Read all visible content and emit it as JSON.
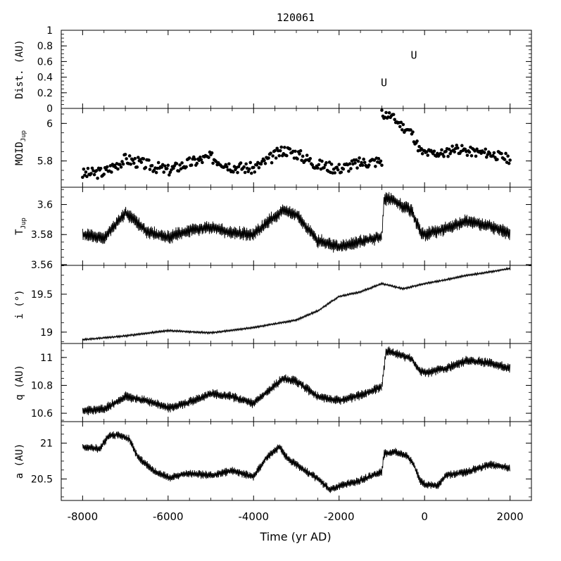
{
  "chart_data": {
    "type": "line",
    "title": "120061",
    "xlabel": "Time (yr AD)",
    "xlim": [
      -8500,
      2500
    ],
    "x_ticks": [
      "-8000",
      "-6000",
      "-4000",
      "-2000",
      "0",
      "2000"
    ],
    "x_tick_values": [
      -8000,
      -6000,
      -4000,
      -2000,
      0,
      2000
    ],
    "panels": [
      {
        "id": "dist",
        "ylabel": "Dist. (AU)",
        "type": "scatter",
        "ylim": [
          0,
          1
        ],
        "ticks": [
          "0",
          "0.2",
          "0.4",
          "0.6",
          "0.8",
          "1"
        ],
        "tick_values": [
          0,
          0.2,
          0.4,
          0.6,
          0.8,
          1
        ],
        "markers": [
          {
            "label": "U",
            "x": -950,
            "y": 0.33
          },
          {
            "label": "U",
            "x": -250,
            "y": 0.68
          }
        ]
      },
      {
        "id": "moid",
        "ylabel": "MOID",
        "ylabel_sub": "Jup",
        "type": "scatter",
        "ylim": [
          5.66,
          6.08
        ],
        "ticks": [
          "5.8",
          "6"
        ],
        "tick_values": [
          5.8,
          6.0
        ],
        "segments": [
          {
            "x0": -8000,
            "x1": -1000,
            "points": [
              [
                -8000,
                5.73
              ],
              [
                -7500,
                5.74
              ],
              [
                -7000,
                5.81
              ],
              [
                -6500,
                5.78
              ],
              [
                -6000,
                5.75
              ],
              [
                -5500,
                5.79
              ],
              [
                -5000,
                5.82
              ],
              [
                -4500,
                5.77
              ],
              [
                -4000,
                5.76
              ],
              [
                -3700,
                5.8
              ],
              [
                -3300,
                5.86
              ],
              [
                -3000,
                5.84
              ],
              [
                -2500,
                5.78
              ],
              [
                -2000,
                5.76
              ],
              [
                -1500,
                5.79
              ],
              [
                -1000,
                5.8
              ]
            ],
            "amp": 0.03,
            "seed": 3
          },
          {
            "x0": -1000,
            "x1": 2000,
            "points": [
              [
                -1000,
                6.05
              ],
              [
                -800,
                6.04
              ],
              [
                -500,
                5.98
              ],
              [
                -300,
                5.95
              ],
              [
                -100,
                5.85
              ],
              [
                0,
                5.84
              ],
              [
                500,
                5.84
              ],
              [
                700,
                5.87
              ],
              [
                1000,
                5.85
              ],
              [
                1500,
                5.84
              ],
              [
                2000,
                5.81
              ]
            ],
            "amp": 0.025,
            "seed": 11
          }
        ]
      },
      {
        "id": "tjup",
        "ylabel": "T",
        "ylabel_sub": "Jup",
        "type": "line",
        "ylim": [
          3.5595,
          3.6115
        ],
        "ticks": [
          "3.56",
          "3.58",
          "3.6"
        ],
        "tick_values": [
          3.56,
          3.58,
          3.6
        ],
        "segments": [
          {
            "x0": -8000,
            "x1": -1000,
            "points": [
              [
                -8000,
                3.58
              ],
              [
                -7500,
                3.578
              ],
              [
                -7000,
                3.594
              ],
              [
                -6800,
                3.59
              ],
              [
                -6500,
                3.582
              ],
              [
                -6000,
                3.578
              ],
              [
                -5500,
                3.583
              ],
              [
                -5000,
                3.585
              ],
              [
                -4500,
                3.581
              ],
              [
                -4000,
                3.58
              ],
              [
                -3700,
                3.588
              ],
              [
                -3300,
                3.596
              ],
              [
                -3000,
                3.593
              ],
              [
                -2500,
                3.576
              ],
              [
                -2000,
                3.572
              ],
              [
                -1500,
                3.575
              ],
              [
                -1000,
                3.579
              ]
            ],
            "amp": 0.004,
            "seed": 5
          },
          {
            "x0": -1000,
            "x1": 2000,
            "points": [
              [
                -1000,
                3.579
              ],
              [
                -950,
                3.603
              ],
              [
                -800,
                3.604
              ],
              [
                -500,
                3.599
              ],
              [
                -300,
                3.596
              ],
              [
                -100,
                3.582
              ],
              [
                0,
                3.58
              ],
              [
                500,
                3.584
              ],
              [
                1000,
                3.589
              ],
              [
                1500,
                3.586
              ],
              [
                2000,
                3.581
              ]
            ],
            "amp": 0.004,
            "seed": 9
          }
        ]
      },
      {
        "id": "incl",
        "ylabel": "i (°)",
        "type": "line",
        "ylim": [
          18.85,
          19.88
        ],
        "ticks": [
          "19",
          "19.5"
        ],
        "tick_values": [
          19.0,
          19.5
        ],
        "segments": [
          {
            "x0": -8000,
            "x1": 2000,
            "points": [
              [
                -8000,
                18.9
              ],
              [
                -7000,
                18.95
              ],
              [
                -6000,
                19.02
              ],
              [
                -5000,
                18.99
              ],
              [
                -4000,
                19.06
              ],
              [
                -3000,
                19.16
              ],
              [
                -2500,
                19.28
              ],
              [
                -2000,
                19.47
              ],
              [
                -1500,
                19.53
              ],
              [
                -1000,
                19.64
              ],
              [
                -500,
                19.57
              ],
              [
                0,
                19.64
              ],
              [
                500,
                19.69
              ],
              [
                1000,
                19.75
              ],
              [
                1500,
                19.79
              ],
              [
                2000,
                19.84
              ]
            ],
            "amp": 0.012,
            "seed": 2
          }
        ]
      },
      {
        "id": "q",
        "ylabel": "q (AU)",
        "type": "line",
        "ylim": [
          10.54,
          11.1
        ],
        "ticks": [
          "10.6",
          "10.8",
          "11"
        ],
        "tick_values": [
          10.6,
          10.8,
          11.0
        ],
        "segments": [
          {
            "x0": -8000,
            "x1": -1000,
            "points": [
              [
                -8000,
                10.62
              ],
              [
                -7500,
                10.63
              ],
              [
                -7000,
                10.72
              ],
              [
                -6500,
                10.69
              ],
              [
                -6000,
                10.64
              ],
              [
                -5500,
                10.68
              ],
              [
                -5000,
                10.74
              ],
              [
                -4500,
                10.72
              ],
              [
                -4000,
                10.67
              ],
              [
                -3700,
                10.75
              ],
              [
                -3300,
                10.85
              ],
              [
                -3000,
                10.83
              ],
              [
                -2500,
                10.72
              ],
              [
                -2000,
                10.69
              ],
              [
                -1500,
                10.73
              ],
              [
                -1000,
                10.79
              ]
            ],
            "amp": 0.03,
            "seed": 7
          },
          {
            "x0": -1000,
            "x1": 2000,
            "points": [
              [
                -1000,
                10.79
              ],
              [
                -900,
                11.05
              ],
              [
                -700,
                11.03
              ],
              [
                -300,
                10.99
              ],
              [
                -100,
                10.9
              ],
              [
                0,
                10.89
              ],
              [
                500,
                10.92
              ],
              [
                1000,
                10.98
              ],
              [
                1500,
                10.96
              ],
              [
                2000,
                10.92
              ]
            ],
            "amp": 0.03,
            "seed": 13
          }
        ]
      },
      {
        "id": "a",
        "ylabel": "a (AU)",
        "type": "line",
        "ylim": [
          20.2,
          21.3
        ],
        "ticks": [
          "20.5",
          "21"
        ],
        "tick_values": [
          20.5,
          21.0
        ],
        "segments": [
          {
            "x0": -8000,
            "x1": 2000,
            "points": [
              [
                -8000,
                20.95
              ],
              [
                -7600,
                20.92
              ],
              [
                -7400,
                21.1
              ],
              [
                -7200,
                21.12
              ],
              [
                -6900,
                21.05
              ],
              [
                -6700,
                20.8
              ],
              [
                -6300,
                20.6
              ],
              [
                -6000,
                20.52
              ],
              [
                -5500,
                20.58
              ],
              [
                -5000,
                20.55
              ],
              [
                -4500,
                20.62
              ],
              [
                -4000,
                20.53
              ],
              [
                -3700,
                20.8
              ],
              [
                -3400,
                20.95
              ],
              [
                -3200,
                20.78
              ],
              [
                -3000,
                20.7
              ],
              [
                -2500,
                20.5
              ],
              [
                -2200,
                20.35
              ],
              [
                -2000,
                20.4
              ],
              [
                -1500,
                20.48
              ],
              [
                -1000,
                20.6
              ],
              [
                -950,
                20.85
              ],
              [
                -700,
                20.88
              ],
              [
                -400,
                20.82
              ],
              [
                -250,
                20.7
              ],
              [
                -100,
                20.48
              ],
              [
                0,
                20.42
              ],
              [
                300,
                20.4
              ],
              [
                500,
                20.55
              ],
              [
                1000,
                20.6
              ],
              [
                1500,
                20.7
              ],
              [
                2000,
                20.66
              ]
            ],
            "amp": 0.05,
            "seed": 17
          }
        ]
      }
    ]
  }
}
